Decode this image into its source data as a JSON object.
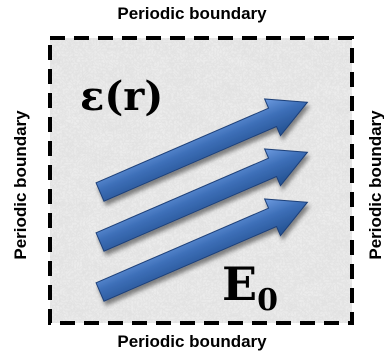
{
  "boundary_labels": {
    "top": "Periodic boundary",
    "bottom": "Periodic boundary",
    "left": "Periodic boundary",
    "right": "Periodic boundary"
  },
  "permittivity_label": "ε(r)",
  "field_label": {
    "base": "E",
    "subscript": "0"
  },
  "colors": {
    "arrow_fill": "#3d6fb8",
    "arrow_edge": "#1e3f78",
    "background_marble": "#e3e3e3",
    "boundary_line": "#000000"
  }
}
